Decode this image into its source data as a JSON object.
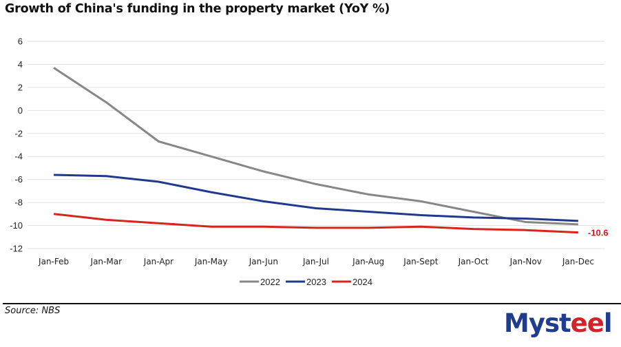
{
  "title": "Growth of China's funding in the property market (YoY %)",
  "source": "Source: NBS",
  "logo": {
    "prefix": "Myst",
    "accent": "ee",
    "suffix": "l",
    "brand_color": "#1e3d8f",
    "accent_color": "#d2232a"
  },
  "chart_data": {
    "type": "line",
    "title": "Growth of China's funding in the property market (YoY %)",
    "xlabel": "",
    "ylabel": "",
    "categories": [
      "Jan-Feb",
      "Jan-Mar",
      "Jan-Apr",
      "Jan-May",
      "Jan-Jun",
      "Jan-Jul",
      "Jan-Aug",
      "Jan-Sept",
      "Jan-Oct",
      "Jan-Nov",
      "Jan-Dec"
    ],
    "ylim": [
      -12,
      6
    ],
    "yticks": [
      6,
      4,
      2,
      0,
      -2,
      -4,
      -6,
      -8,
      -10,
      -12
    ],
    "grid": true,
    "legend_position": "bottom",
    "series": [
      {
        "name": "2022",
        "color": "#878787",
        "values": [
          3.7,
          0.7,
          -2.7,
          -4.0,
          -5.3,
          -6.4,
          -7.3,
          -7.9,
          -8.8,
          -9.7,
          -9.9
        ]
      },
      {
        "name": "2023",
        "color": "#1f3a8c",
        "values": [
          -5.6,
          -5.7,
          -6.2,
          -7.1,
          -7.9,
          -8.5,
          -8.8,
          -9.1,
          -9.3,
          -9.4,
          -9.6
        ]
      },
      {
        "name": "2024",
        "color": "#d9241c",
        "values": [
          -9.0,
          -9.5,
          -9.8,
          -10.1,
          -10.1,
          -10.2,
          -10.2,
          -10.1,
          -10.3,
          -10.4,
          -10.6
        ]
      }
    ],
    "annotations": [
      {
        "series": "2024",
        "category": "Jan-Dec",
        "text": "-10.6",
        "color": "#e8141c"
      }
    ]
  }
}
